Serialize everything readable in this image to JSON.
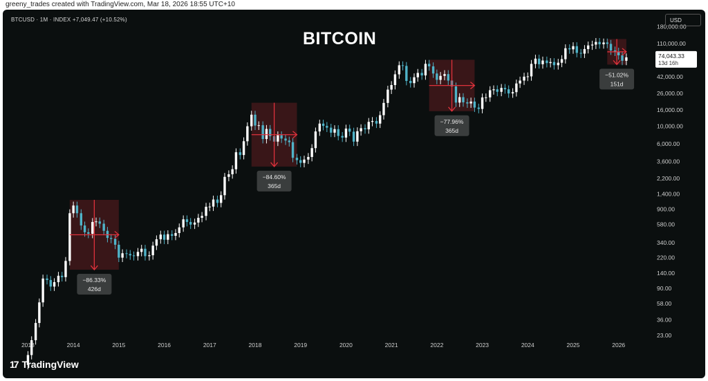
{
  "credit": "greeny_trades created with TradingView.com, Mar 18, 2026 18:55 UTC+10",
  "symbol_line": "BTCUSD · 1M · INDEX  +7,049.47 (+10.52%)",
  "currency": "USD",
  "brand": "TradingView",
  "brand_mark": "17",
  "chart_data": {
    "type": "candlestick",
    "title": "BITCOIN",
    "scale": "log",
    "y_ticks": [
      23,
      36,
      58,
      90,
      140,
      220,
      340,
      580,
      900,
      1400,
      2200,
      3600,
      6000,
      10000,
      16000,
      26000,
      42000,
      110000,
      180000
    ],
    "y_tick_labels": [
      "23.00",
      "36.00",
      "58.00",
      "90.00",
      "140.00",
      "220.00",
      "340.00",
      "580.00",
      "900.00",
      "1,400.00",
      "2,200.00",
      "3,600.00",
      "6,000.00",
      "10,000.00",
      "16,000.00",
      "26,000.00",
      "42,000.00",
      "110,000.00",
      "180,000.00"
    ],
    "x_ticks": [
      "2013",
      "2014",
      "2015",
      "2016",
      "2017",
      "2018",
      "2019",
      "2020",
      "2021",
      "2022",
      "2023",
      "2024",
      "2025",
      "2026"
    ],
    "x_range": [
      2012.75,
      2026.75
    ],
    "y_range": [
      20,
      190000
    ],
    "last_price": "74,043.33",
    "countdown": "13d 16h",
    "last_price_value": 74043.33,
    "up_color": "#ffffff",
    "down_color": "#4fb3c8",
    "highlight_color": "#e0323c",
    "monthly_closes": [
      [
        2013.0,
        13
      ],
      [
        2013.08,
        20
      ],
      [
        2013.17,
        33
      ],
      [
        2013.25,
        60
      ],
      [
        2013.33,
        120
      ],
      [
        2013.42,
        115
      ],
      [
        2013.5,
        95
      ],
      [
        2013.58,
        108
      ],
      [
        2013.67,
        130
      ],
      [
        2013.75,
        125
      ],
      [
        2013.83,
        200
      ],
      [
        2013.92,
        800
      ],
      [
        2014.0,
        1000
      ],
      [
        2014.08,
        800
      ],
      [
        2014.17,
        560
      ],
      [
        2014.25,
        460
      ],
      [
        2014.33,
        440
      ],
      [
        2014.42,
        620
      ],
      [
        2014.5,
        630
      ],
      [
        2014.58,
        590
      ],
      [
        2014.67,
        480
      ],
      [
        2014.75,
        390
      ],
      [
        2014.83,
        380
      ],
      [
        2014.92,
        320
      ],
      [
        2015.0,
        220
      ],
      [
        2015.08,
        250
      ],
      [
        2015.17,
        245
      ],
      [
        2015.25,
        235
      ],
      [
        2015.33,
        230
      ],
      [
        2015.42,
        260
      ],
      [
        2015.5,
        285
      ],
      [
        2015.58,
        230
      ],
      [
        2015.67,
        236
      ],
      [
        2015.75,
        312
      ],
      [
        2015.83,
        375
      ],
      [
        2015.92,
        430
      ],
      [
        2016.0,
        370
      ],
      [
        2016.08,
        435
      ],
      [
        2016.17,
        415
      ],
      [
        2016.25,
        450
      ],
      [
        2016.33,
        530
      ],
      [
        2016.42,
        670
      ],
      [
        2016.5,
        620
      ],
      [
        2016.58,
        575
      ],
      [
        2016.67,
        610
      ],
      [
        2016.75,
        700
      ],
      [
        2016.83,
        740
      ],
      [
        2016.92,
        965
      ],
      [
        2017.0,
        970
      ],
      [
        2017.08,
        1190
      ],
      [
        2017.17,
        1080
      ],
      [
        2017.25,
        1350
      ],
      [
        2017.33,
        2300
      ],
      [
        2017.42,
        2480
      ],
      [
        2017.5,
        2870
      ],
      [
        2017.58,
        4700
      ],
      [
        2017.67,
        4340
      ],
      [
        2017.75,
        6470
      ],
      [
        2017.83,
        10000
      ],
      [
        2017.92,
        14000
      ],
      [
        2018.0,
        10200
      ],
      [
        2018.08,
        10300
      ],
      [
        2018.17,
        6900
      ],
      [
        2018.25,
        9250
      ],
      [
        2018.33,
        7500
      ],
      [
        2018.42,
        6400
      ],
      [
        2018.5,
        7700
      ],
      [
        2018.58,
        7000
      ],
      [
        2018.67,
        6600
      ],
      [
        2018.75,
        6300
      ],
      [
        2018.83,
        4000
      ],
      [
        2018.92,
        3740
      ],
      [
        2019.0,
        3450
      ],
      [
        2019.08,
        3800
      ],
      [
        2019.17,
        4100
      ],
      [
        2019.25,
        5300
      ],
      [
        2019.33,
        8600
      ],
      [
        2019.42,
        10800
      ],
      [
        2019.5,
        10100
      ],
      [
        2019.58,
        9600
      ],
      [
        2019.67,
        8300
      ],
      [
        2019.75,
        9200
      ],
      [
        2019.83,
        7550
      ],
      [
        2019.92,
        7200
      ],
      [
        2020.0,
        9350
      ],
      [
        2020.08,
        8550
      ],
      [
        2020.17,
        6400
      ],
      [
        2020.25,
        8650
      ],
      [
        2020.33,
        9450
      ],
      [
        2020.42,
        9150
      ],
      [
        2020.5,
        11350
      ],
      [
        2020.58,
        11650
      ],
      [
        2020.67,
        10800
      ],
      [
        2020.75,
        13800
      ],
      [
        2020.83,
        19700
      ],
      [
        2020.92,
        29000
      ],
      [
        2021.0,
        33100
      ],
      [
        2021.08,
        45200
      ],
      [
        2021.17,
        58800
      ],
      [
        2021.25,
        57700
      ],
      [
        2021.33,
        37300
      ],
      [
        2021.42,
        35000
      ],
      [
        2021.5,
        41500
      ],
      [
        2021.58,
        47100
      ],
      [
        2021.67,
        43800
      ],
      [
        2021.75,
        61300
      ],
      [
        2021.83,
        57000
      ],
      [
        2021.92,
        46300
      ],
      [
        2022.0,
        38500
      ],
      [
        2022.08,
        43200
      ],
      [
        2022.17,
        45500
      ],
      [
        2022.25,
        37700
      ],
      [
        2022.33,
        31800
      ],
      [
        2022.42,
        19900
      ],
      [
        2022.5,
        23300
      ],
      [
        2022.58,
        20050
      ],
      [
        2022.67,
        19400
      ],
      [
        2022.75,
        20500
      ],
      [
        2022.83,
        17200
      ],
      [
        2022.92,
        16550
      ],
      [
        2023.0,
        23100
      ],
      [
        2023.08,
        23150
      ],
      [
        2023.17,
        28500
      ],
      [
        2023.25,
        29250
      ],
      [
        2023.33,
        27200
      ],
      [
        2023.42,
        30450
      ],
      [
        2023.5,
        29250
      ],
      [
        2023.58,
        25950
      ],
      [
        2023.67,
        26950
      ],
      [
        2023.75,
        34650
      ],
      [
        2023.83,
        37700
      ],
      [
        2023.92,
        42250
      ],
      [
        2024.0,
        42600
      ],
      [
        2024.08,
        61200
      ],
      [
        2024.17,
        71300
      ],
      [
        2024.25,
        60600
      ],
      [
        2024.33,
        67500
      ],
      [
        2024.42,
        62700
      ],
      [
        2024.5,
        64600
      ],
      [
        2024.58,
        58950
      ],
      [
        2024.67,
        63300
      ],
      [
        2024.75,
        70200
      ],
      [
        2024.83,
        96400
      ],
      [
        2024.92,
        93400
      ],
      [
        2025.0,
        102400
      ],
      [
        2025.08,
        84300
      ],
      [
        2025.17,
        82500
      ],
      [
        2025.25,
        94200
      ],
      [
        2025.33,
        104600
      ],
      [
        2025.42,
        107200
      ],
      [
        2025.5,
        115800
      ],
      [
        2025.58,
        108200
      ],
      [
        2025.67,
        114000
      ],
      [
        2025.75,
        109500
      ],
      [
        2025.83,
        90400
      ],
      [
        2025.92,
        87500
      ],
      [
        2026.0,
        78600
      ],
      [
        2026.08,
        67000
      ],
      [
        2026.17,
        74043
      ]
    ],
    "drawdowns": [
      {
        "label": "−86.33%",
        "duration": "426d",
        "x_start": 2013.92,
        "x_end": 2015.0,
        "y_top": 1180,
        "y_bottom": 155
      },
      {
        "label": "−84.60%",
        "duration": "365d",
        "x_start": 2017.92,
        "x_end": 2018.92,
        "y_top": 19800,
        "y_bottom": 3100
      },
      {
        "label": "−77.96%",
        "duration": "365d",
        "x_start": 2021.83,
        "x_end": 2022.83,
        "y_top": 69000,
        "y_bottom": 15500
      },
      {
        "label": "−51.02%",
        "duration": "151d",
        "x_start": 2025.75,
        "x_end": 2026.17,
        "y_top": 126000,
        "y_bottom": 60000
      }
    ]
  }
}
